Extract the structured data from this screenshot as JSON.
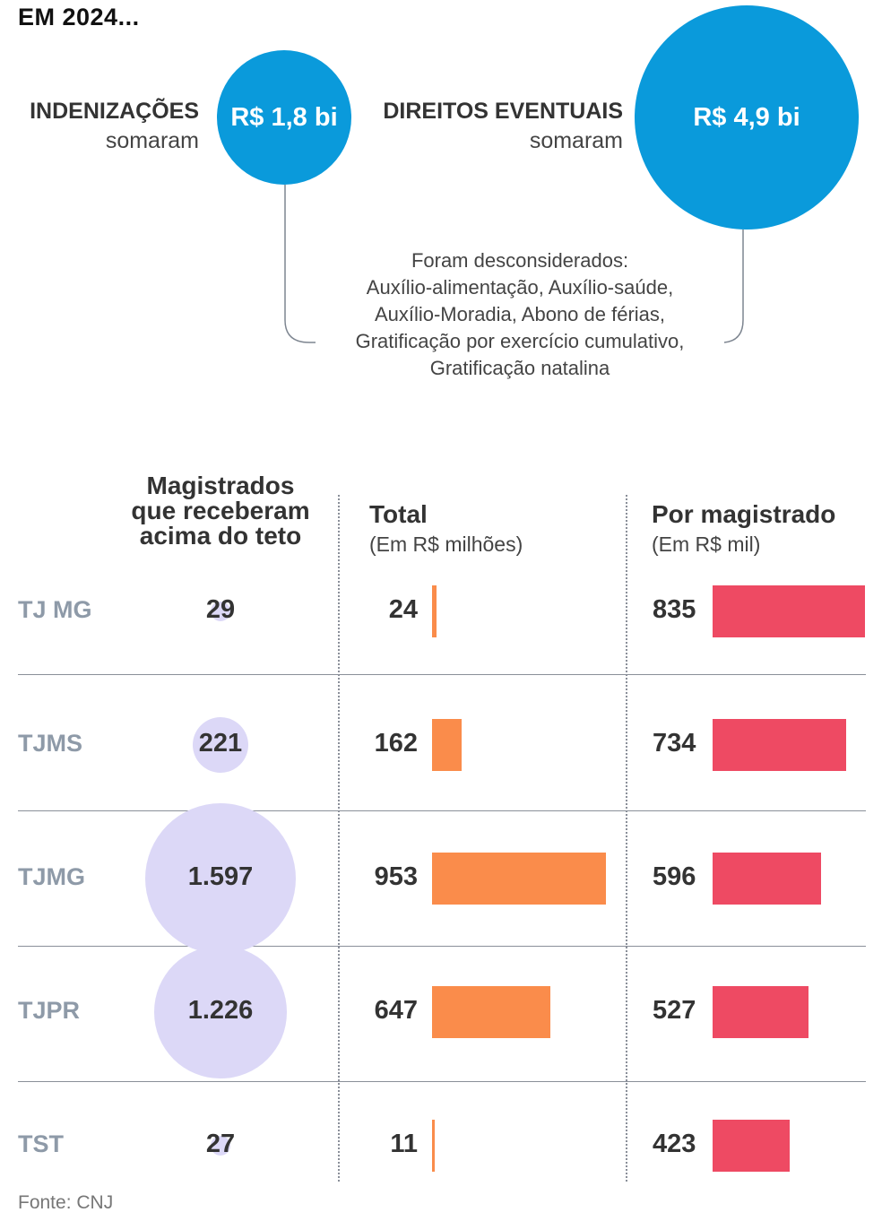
{
  "header": {
    "title": "EM 2024..."
  },
  "summary": {
    "indenizacoes": {
      "label": "INDENIZAÇÕES",
      "sublabel": "somaram",
      "value": "R$ 1,8 bi"
    },
    "direitos": {
      "label": "DIREITOS EVENTUAIS",
      "sublabel": "somaram",
      "value": "R$ 4,9 bi"
    },
    "note_lines": [
      "Foram desconsiderados:",
      "Auxílio-alimentação, Auxílio-saúde,",
      "Auxílio-Moradia, Abono de férias,",
      "Gratificação por exercício cumulativo,",
      "Gratificação natalina"
    ]
  },
  "columns": {
    "magistrados": {
      "lines": [
        "Magistrados",
        "que receberam",
        "acima do teto"
      ]
    },
    "total": {
      "title": "Total",
      "unit": "(Em R$ milhões)"
    },
    "por_magistrado": {
      "title": "Por magistrado",
      "unit": "(Em R$ mil)"
    }
  },
  "colors": {
    "bubble": "#0a9adb",
    "circle": "#dcd8f7",
    "total_bar": "#fa8c4b",
    "per_bar": "#ee4a63",
    "row_label": "#8e9aa8"
  },
  "chart_data": {
    "type": "table",
    "categories": [
      "TJ MG",
      "TJMS",
      "TJMG",
      "TJPR",
      "TST"
    ],
    "series": [
      {
        "name": "Magistrados que receberam acima do teto",
        "values": [
          29,
          221,
          1597,
          1226,
          27
        ],
        "display": [
          "29",
          "221",
          "1.597",
          "1.226",
          "27"
        ]
      },
      {
        "name": "Total",
        "values": [
          24,
          162,
          953,
          647,
          11
        ],
        "display": [
          "24",
          "162",
          "953",
          "647",
          "11"
        ]
      },
      {
        "name": "Por magistrado",
        "values": [
          835,
          734,
          596,
          527,
          423
        ],
        "display": [
          "835",
          "734",
          "596",
          "527",
          "423"
        ]
      }
    ]
  },
  "source": "Fonte: CNJ"
}
